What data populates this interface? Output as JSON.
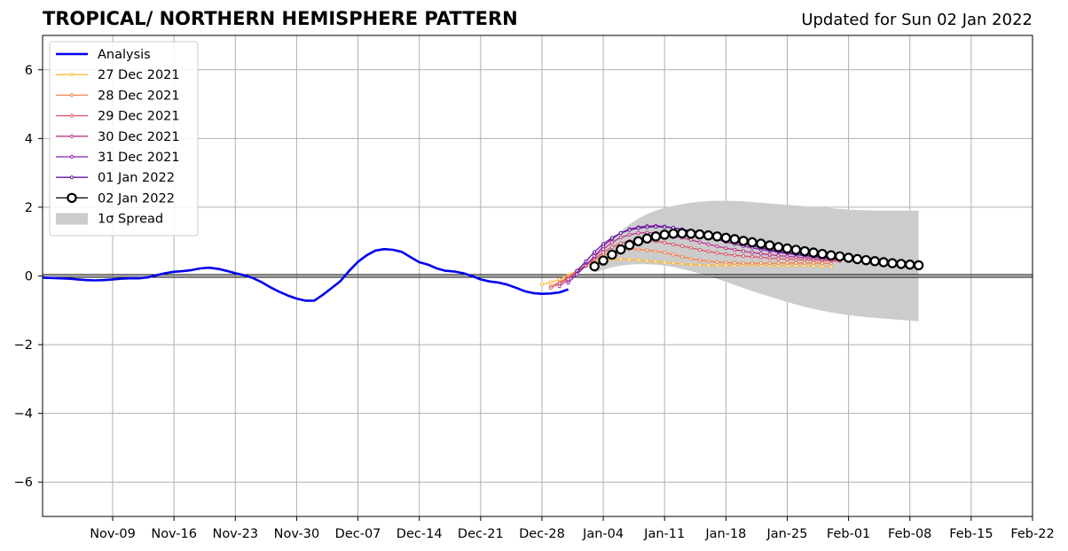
{
  "title": "TROPICAL/ NORTHERN HEMISPHERE PATTERN",
  "updated": "Updated for Sun 02 Jan 2022",
  "chart_data": {
    "type": "line",
    "x_axis": {
      "range": [
        "2021-11-01",
        "2022-02-22"
      ],
      "ticks": [
        {
          "date": "2021-11-09",
          "label": "Nov-09"
        },
        {
          "date": "2021-11-16",
          "label": "Nov-16"
        },
        {
          "date": "2021-11-23",
          "label": "Nov-23"
        },
        {
          "date": "2021-11-30",
          "label": "Nov-30"
        },
        {
          "date": "2021-12-07",
          "label": "Dec-07"
        },
        {
          "date": "2021-12-14",
          "label": "Dec-14"
        },
        {
          "date": "2021-12-21",
          "label": "Dec-21"
        },
        {
          "date": "2021-12-28",
          "label": "Dec-28"
        },
        {
          "date": "2022-01-04",
          "label": "Jan-04"
        },
        {
          "date": "2022-01-11",
          "label": "Jan-11"
        },
        {
          "date": "2022-01-18",
          "label": "Jan-18"
        },
        {
          "date": "2022-01-25",
          "label": "Jan-25"
        },
        {
          "date": "2022-02-01",
          "label": "Feb-01"
        },
        {
          "date": "2022-02-08",
          "label": "Feb-08"
        },
        {
          "date": "2022-02-15",
          "label": "Feb-15"
        },
        {
          "date": "2022-02-22",
          "label": "Feb-22"
        }
      ]
    },
    "y_axis": {
      "range": [
        -7,
        7
      ],
      "ticks": [
        {
          "value": 6,
          "label": "6"
        },
        {
          "value": 4,
          "label": "4"
        },
        {
          "value": 2,
          "label": "2"
        },
        {
          "value": 0,
          "label": "0"
        },
        {
          "value": -2,
          "label": "−2"
        },
        {
          "value": -4,
          "label": "−4"
        },
        {
          "value": -6,
          "label": "−6"
        }
      ]
    },
    "grid": true,
    "zero_line": true,
    "legend_position": "top-left",
    "legend": [
      {
        "label": "Analysis",
        "color": "#0000ee",
        "style": "thick-line"
      },
      {
        "label": "27 Dec 2021",
        "color": "#fcb93c",
        "style": "line-dot"
      },
      {
        "label": "28 Dec 2021",
        "color": "#f2844b",
        "style": "line-dot"
      },
      {
        "label": "29 Dec 2021",
        "color": "#d9566d",
        "style": "line-dot"
      },
      {
        "label": "30 Dec 2021",
        "color": "#b7378a",
        "style": "line-dot"
      },
      {
        "label": "31 Dec 2021",
        "color": "#8a1fa8",
        "style": "line-dot"
      },
      {
        "label": "01 Jan 2022",
        "color": "#5b169a",
        "style": "line-dot"
      },
      {
        "label": "02 Jan 2022",
        "color": "#000000",
        "style": "open-circle"
      },
      {
        "label": "1σ Spread",
        "color": "#cccccc",
        "style": "patch"
      }
    ],
    "analysis": {
      "name": "Analysis",
      "color": "#0000ee",
      "start": "2021-11-01",
      "values": [
        -0.05,
        -0.06,
        -0.07,
        -0.08,
        -0.1,
        -0.12,
        -0.13,
        -0.12,
        -0.1,
        -0.08,
        -0.07,
        -0.07,
        -0.04,
        0.02,
        0.08,
        0.12,
        0.14,
        0.17,
        0.22,
        0.24,
        0.21,
        0.15,
        0.08,
        0.02,
        -0.06,
        -0.18,
        -0.33,
        -0.46,
        -0.57,
        -0.66,
        -0.72,
        -0.72,
        -0.55,
        -0.35,
        -0.15,
        0.15,
        0.41,
        0.6,
        0.74,
        0.78,
        0.76,
        0.7,
        0.55,
        0.4,
        0.33,
        0.22,
        0.15,
        0.13,
        0.08,
        0.0,
        -0.1,
        -0.16,
        -0.19,
        -0.25,
        -0.34,
        -0.44,
        -0.5,
        -0.52,
        -0.51,
        -0.48,
        -0.39
      ]
    },
    "forecasts": [
      {
        "name": "27 Dec 2021",
        "color": "#fcb93c",
        "start": "2021-12-28",
        "values": [
          -0.25,
          -0.18,
          -0.1,
          0.02,
          0.15,
          0.28,
          0.38,
          0.45,
          0.48,
          0.49,
          0.48,
          0.46,
          0.44,
          0.42,
          0.39,
          0.37,
          0.35,
          0.33,
          0.32,
          0.31,
          0.31,
          0.31,
          0.31,
          0.31,
          0.31,
          0.31,
          0.31,
          0.3,
          0.3,
          0.3,
          0.3,
          0.29,
          0.28,
          0.27
        ]
      },
      {
        "name": "28 Dec 2021",
        "color": "#f2844b",
        "start": "2021-12-29",
        "values": [
          -0.3,
          -0.18,
          -0.02,
          0.15,
          0.32,
          0.47,
          0.6,
          0.7,
          0.76,
          0.78,
          0.77,
          0.75,
          0.72,
          0.68,
          0.62,
          0.56,
          0.5,
          0.46,
          0.43,
          0.4,
          0.39,
          0.38,
          0.37,
          0.37,
          0.37,
          0.37,
          0.37,
          0.38,
          0.38,
          0.38,
          0.38,
          0.37,
          0.36
        ]
      },
      {
        "name": "29 Dec 2021",
        "color": "#d9566d",
        "start": "2021-12-29",
        "values": [
          -0.35,
          -0.22,
          -0.06,
          0.12,
          0.3,
          0.5,
          0.68,
          0.84,
          0.95,
          1.02,
          1.04,
          1.04,
          1.01,
          0.97,
          0.92,
          0.87,
          0.82,
          0.76,
          0.71,
          0.67,
          0.63,
          0.6,
          0.58,
          0.56,
          0.54,
          0.52,
          0.5,
          0.49,
          0.48,
          0.47,
          0.46,
          0.45,
          0.44,
          0.43
        ]
      },
      {
        "name": "30 Dec 2021",
        "color": "#b7378a",
        "start": "2021-12-30",
        "values": [
          -0.3,
          -0.1,
          0.1,
          0.32,
          0.55,
          0.78,
          0.98,
          1.12,
          1.2,
          1.25,
          1.26,
          1.25,
          1.22,
          1.17,
          1.11,
          1.05,
          0.98,
          0.92,
          0.86,
          0.81,
          0.76,
          0.72,
          0.68,
          0.65,
          0.62,
          0.59,
          0.57,
          0.55,
          0.53,
          0.51,
          0.49,
          0.47,
          0.46
        ]
      },
      {
        "name": "31 Dec 2021",
        "color": "#8a1fa8",
        "start": "2021-12-31",
        "values": [
          -0.2,
          0.05,
          0.3,
          0.58,
          0.86,
          1.08,
          1.25,
          1.36,
          1.42,
          1.45,
          1.46,
          1.44,
          1.4,
          1.34,
          1.27,
          1.2,
          1.13,
          1.06,
          0.99,
          0.93,
          0.87,
          0.82,
          0.77,
          0.73,
          0.69,
          0.65,
          0.62,
          0.59,
          0.56,
          0.54,
          0.52,
          0.5,
          0.48,
          0.46,
          0.45
        ]
      },
      {
        "name": "01 Jan 2022",
        "color": "#5b169a",
        "start": "2022-01-01",
        "values": [
          0.15,
          0.42,
          0.7,
          0.93,
          1.11,
          1.25,
          1.34,
          1.39,
          1.42,
          1.43,
          1.42,
          1.4,
          1.36,
          1.31,
          1.25,
          1.19,
          1.12,
          1.06,
          1.0,
          0.94,
          0.88,
          0.82,
          0.77,
          0.72,
          0.68,
          0.64,
          0.6,
          0.57,
          0.54,
          0.51,
          0.49,
          0.47,
          0.45,
          0.44,
          0.43
        ]
      },
      {
        "name": "02 Jan 2022",
        "color": "#000000",
        "start": "2022-01-03",
        "values": [
          0.28,
          0.45,
          0.62,
          0.77,
          0.9,
          1.01,
          1.09,
          1.15,
          1.2,
          1.23,
          1.24,
          1.23,
          1.21,
          1.18,
          1.15,
          1.11,
          1.07,
          1.02,
          0.98,
          0.94,
          0.89,
          0.84,
          0.8,
          0.76,
          0.72,
          0.68,
          0.64,
          0.6,
          0.57,
          0.53,
          0.49,
          0.46,
          0.43,
          0.4,
          0.37,
          0.35,
          0.33,
          0.31
        ]
      }
    ],
    "spread": {
      "name": "1σ Spread",
      "color": "#cccccc",
      "start": "2022-01-03",
      "upper": [
        0.45,
        0.75,
        1.05,
        1.3,
        1.5,
        1.67,
        1.8,
        1.9,
        1.98,
        2.04,
        2.09,
        2.13,
        2.16,
        2.18,
        2.19,
        2.19,
        2.18,
        2.17,
        2.15,
        2.13,
        2.11,
        2.09,
        2.07,
        2.05,
        2.03,
        2.01,
        1.99,
        1.97,
        1.95,
        1.93,
        1.92,
        1.91,
        1.9,
        1.9,
        1.9,
        1.9,
        1.9,
        1.9
      ],
      "lower": [
        0.1,
        0.18,
        0.25,
        0.3,
        0.33,
        0.34,
        0.34,
        0.33,
        0.3,
        0.26,
        0.2,
        0.14,
        0.07,
        0.0,
        -0.08,
        -0.17,
        -0.26,
        -0.35,
        -0.44,
        -0.52,
        -0.6,
        -0.68,
        -0.76,
        -0.83,
        -0.9,
        -0.96,
        -1.01,
        -1.06,
        -1.1,
        -1.14,
        -1.17,
        -1.2,
        -1.22,
        -1.24,
        -1.26,
        -1.28,
        -1.3,
        -1.32
      ]
    }
  }
}
